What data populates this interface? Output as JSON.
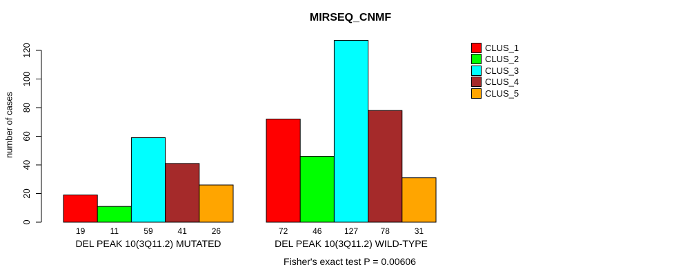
{
  "chart_data": {
    "type": "bar",
    "title": "MIRSEQ_CNMF",
    "xlabel": "",
    "ylabel": "number of cases",
    "ylim": [
      0,
      127
    ],
    "yticks": [
      0,
      20,
      40,
      60,
      80,
      100,
      120
    ],
    "grid": false,
    "legend_position": "top-right",
    "groups": [
      {
        "label": "DEL PEAK 10(3Q11.2) MUTATED"
      },
      {
        "label": "DEL PEAK 10(3Q11.2) WILD-TYPE"
      }
    ],
    "series": [
      {
        "name": "CLUS_1",
        "color": "#FF0000",
        "values": [
          19,
          72
        ]
      },
      {
        "name": "CLUS_2",
        "color": "#00FF00",
        "values": [
          11,
          46
        ]
      },
      {
        "name": "CLUS_3",
        "color": "#00FFFF",
        "values": [
          59,
          127
        ]
      },
      {
        "name": "CLUS_4",
        "color": "#A52A2A",
        "values": [
          41,
          78
        ]
      },
      {
        "name": "CLUS_5",
        "color": "#FFA500",
        "values": [
          26,
          31
        ]
      }
    ],
    "bar_value_labels": [
      [
        19,
        11,
        59,
        41,
        26
      ],
      [
        72,
        46,
        127,
        78,
        31
      ]
    ],
    "annotation": "Fisher's exact test P = 0.00606",
    "axis_color": "#000000",
    "bar_border_color": "#000000"
  }
}
